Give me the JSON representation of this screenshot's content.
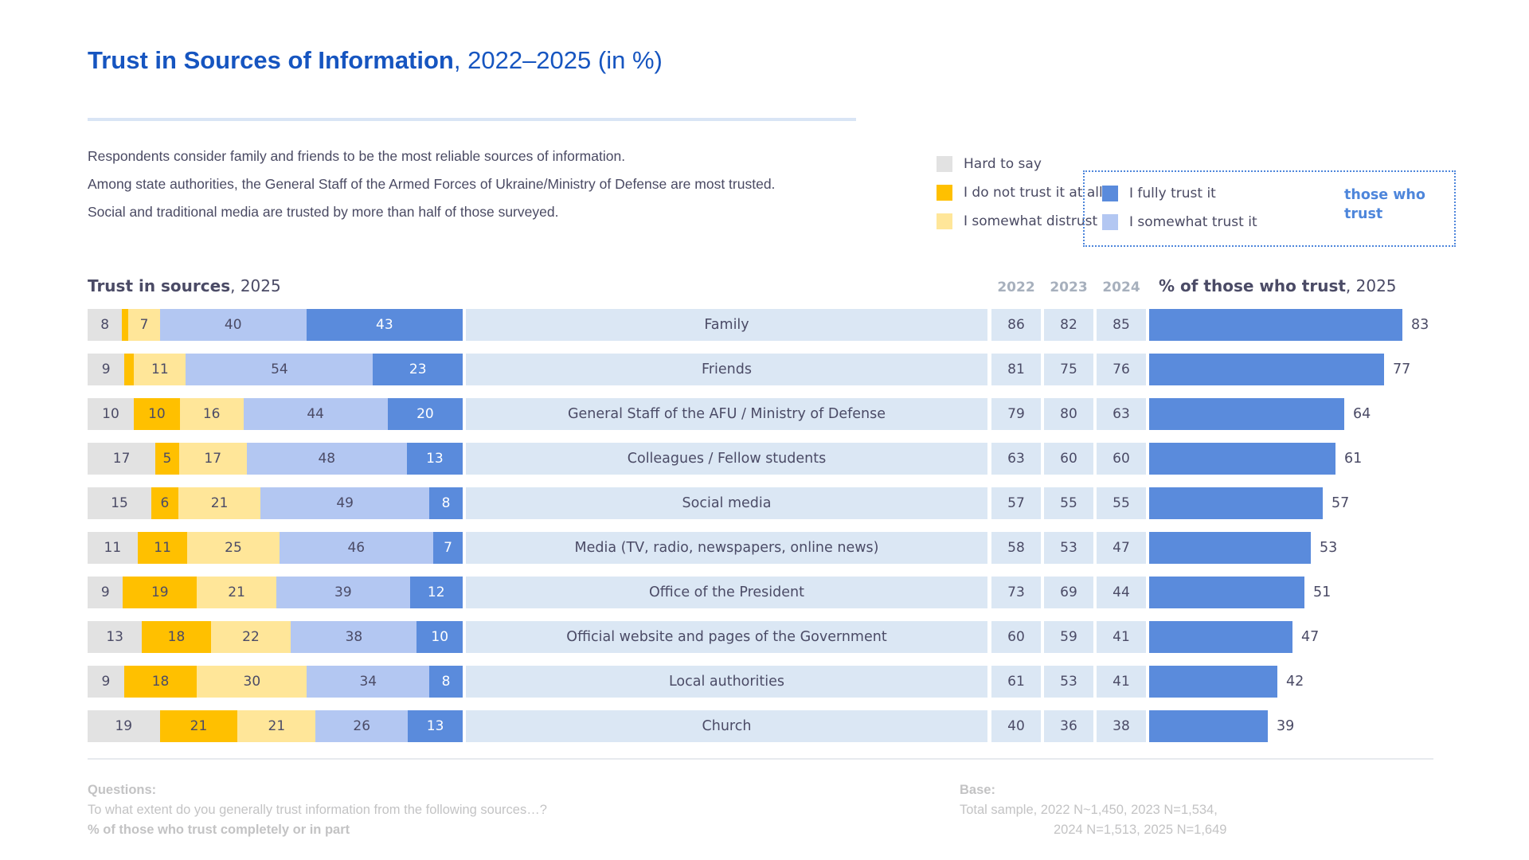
{
  "title": {
    "main": "Trust in Sources of Information",
    "suffix": ", 2022–2025 (in %)"
  },
  "description": [
    "Respondents consider family and friends to be the most reliable sources of information.",
    "Among state authorities, the General Staff of the Armed Forces of Ukraine/Ministry of Defense are most trusted.",
    "Social and traditional media are trusted by more than half of those surveyed."
  ],
  "legend": {
    "outside": [
      {
        "key": "hard_to_say",
        "label": "Hard to say"
      },
      {
        "key": "not_at_all",
        "label": "I do not trust it at all"
      },
      {
        "key": "somewhat_distrust",
        "label": "I somewhat distrust it"
      }
    ],
    "boxed": [
      {
        "key": "fully_trust",
        "label": "I fully trust it"
      },
      {
        "key": "somewhat_trust",
        "label": "I somewhat trust it"
      }
    ],
    "boxed_caption": "those who trust"
  },
  "section": {
    "left_title_bold": "Trust in sources",
    "left_title_suffix": ", 2025",
    "year_headers": [
      "2022",
      "2023",
      "2024"
    ],
    "right_title_bold": "% of those who trust",
    "right_title_suffix": ", 2025"
  },
  "colors": {
    "hard_to_say": "#E2E2E2",
    "not_at_all": "#FFC000",
    "somewhat_distrust": "#FFE699",
    "somewhat_trust": "#B3C7F2",
    "fully_trust": "#5A8BDC",
    "band": "#DBE7F4",
    "title_blue": "#1655C0",
    "accent_blue": "#4E86DB"
  },
  "chart_data": {
    "type": "bar",
    "title": "Trust in Sources of Information, 2022–2025 (in %)",
    "stack_order": [
      "hard_to_say",
      "not_at_all",
      "somewhat_distrust",
      "somewhat_trust",
      "fully_trust"
    ],
    "stack_labels": [
      "Hard to say",
      "I do not trust it at all",
      "I somewhat distrust it",
      "I somewhat trust it",
      "I fully trust it"
    ],
    "year_columns": [
      "2022",
      "2023",
      "2024"
    ],
    "right_series": "% of those who trust, 2025",
    "min_label_value": 4,
    "right_axis_max": 84,
    "rows": [
      {
        "label": "Family",
        "stack": [
          8,
          2,
          7,
          40,
          43
        ],
        "years": [
          86,
          82,
          85
        ],
        "trust_2025": 83
      },
      {
        "label": "Friends",
        "stack": [
          9,
          3,
          11,
          54,
          23
        ],
        "years": [
          81,
          75,
          76
        ],
        "trust_2025": 77
      },
      {
        "label": "General Staff of the AFU / Ministry of Defense",
        "stack": [
          10,
          10,
          16,
          44,
          20
        ],
        "years": [
          79,
          80,
          63
        ],
        "trust_2025": 64
      },
      {
        "label": "Colleagues / Fellow students",
        "stack": [
          17,
          5,
          17,
          48,
          13
        ],
        "years": [
          63,
          60,
          60
        ],
        "trust_2025": 61
      },
      {
        "label": "Social media",
        "stack": [
          15,
          6,
          21,
          49,
          8
        ],
        "years": [
          57,
          55,
          55
        ],
        "trust_2025": 57
      },
      {
        "label": "Media (TV, radio, newspapers, online news)",
        "stack": [
          11,
          11,
          25,
          46,
          7
        ],
        "years": [
          58,
          53,
          47
        ],
        "trust_2025": 53
      },
      {
        "label": "Office of the President",
        "stack": [
          9,
          19,
          21,
          39,
          12
        ],
        "years": [
          73,
          69,
          44
        ],
        "trust_2025": 51
      },
      {
        "label": "Official website and pages of the Government",
        "stack": [
          13,
          18,
          22,
          38,
          10
        ],
        "years": [
          60,
          59,
          41
        ],
        "trust_2025": 47
      },
      {
        "label": "Local authorities",
        "stack": [
          9,
          18,
          30,
          34,
          8
        ],
        "years": [
          61,
          53,
          41
        ],
        "trust_2025": 42
      },
      {
        "label": "Church",
        "stack": [
          19,
          21,
          21,
          26,
          13
        ],
        "years": [
          40,
          36,
          38
        ],
        "trust_2025": 39
      }
    ]
  },
  "footer": {
    "questions_title": "Questions:",
    "questions_line1": "To what extent do you generally trust information from the following sources…?",
    "questions_line2": "% of those who trust completely or in part",
    "base_title": "Base:",
    "base_line1": "Total sample, 2022  N~1,450, 2023  N=1,534,",
    "base_line2": "2024 N=1,513,  2025  N=1,649"
  }
}
